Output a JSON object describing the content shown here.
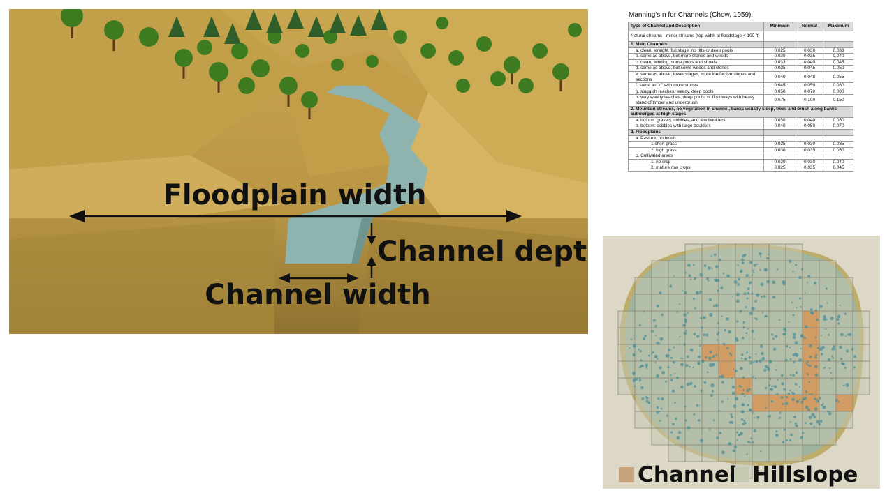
{
  "scene": {
    "floodplain_label": "Floodplain width",
    "depth_label": "Channel depth",
    "width_label": "Channel width"
  },
  "table": {
    "title": "Manning's n for Channels (Chow, 1959).",
    "headers": [
      "Type of Channel and Description",
      "Minimum",
      "Normal",
      "Maximum"
    ],
    "rows": [
      {
        "kind": "note",
        "desc": "Natural streams - minor streams (top width at floodstage < 100 ft)",
        "min": "",
        "norm": "",
        "max": ""
      },
      {
        "kind": "sect",
        "desc": "1. Main Channels",
        "min": "",
        "norm": "",
        "max": ""
      },
      {
        "kind": "sub",
        "desc": "a. clean, straight, full stage, no rifts or deep pools",
        "min": "0.025",
        "norm": "0.030",
        "max": "0.033"
      },
      {
        "kind": "sub",
        "desc": "b. same as above, but more stones and weeds",
        "min": "0.030",
        "norm": "0.035",
        "max": "0.040"
      },
      {
        "kind": "sub",
        "desc": "c. clean, winding, some pools and shoals",
        "min": "0.033",
        "norm": "0.040",
        "max": "0.045"
      },
      {
        "kind": "sub",
        "desc": "d. same as above, but some weeds and stones",
        "min": "0.035",
        "norm": "0.045",
        "max": "0.050"
      },
      {
        "kind": "sub",
        "desc": "e. same as above, lower stages, more ineffective slopes and sections",
        "min": "0.040",
        "norm": "0.048",
        "max": "0.055"
      },
      {
        "kind": "sub",
        "desc": "f. same as \"d\" with more stones",
        "min": "0.045",
        "norm": "0.050",
        "max": "0.060"
      },
      {
        "kind": "sub",
        "desc": "g. sluggish reaches, weedy, deep pools",
        "min": "0.050",
        "norm": "0.070",
        "max": "0.080"
      },
      {
        "kind": "sub",
        "desc": "h. very weedy reaches, deep pools, or floodways with heavy stand of timber and underbrush",
        "min": "0.075",
        "norm": "0.100",
        "max": "0.150"
      },
      {
        "kind": "sect",
        "desc": "2. Mountain streams, no vegetation in channel, banks usually steep, trees and brush along banks submerged at high stages",
        "min": "",
        "norm": "",
        "max": ""
      },
      {
        "kind": "sub",
        "desc": "a. bottom: gravels, cobbles, and few boulders",
        "min": "0.030",
        "norm": "0.040",
        "max": "0.050"
      },
      {
        "kind": "sub",
        "desc": "b. bottom: cobbles with large boulders",
        "min": "0.040",
        "norm": "0.050",
        "max": "0.070"
      },
      {
        "kind": "sect",
        "desc": "3. Floodplains",
        "min": "",
        "norm": "",
        "max": ""
      },
      {
        "kind": "sub",
        "desc": "a. Pasture, no brush",
        "min": "",
        "norm": "",
        "max": ""
      },
      {
        "kind": "subsub",
        "desc": "1.short grass",
        "min": "0.025",
        "norm": "0.030",
        "max": "0.035"
      },
      {
        "kind": "subsub",
        "desc": "2. high grass",
        "min": "0.030",
        "norm": "0.035",
        "max": "0.050"
      },
      {
        "kind": "sub",
        "desc": "b. Cultivated areas",
        "min": "",
        "norm": "",
        "max": ""
      },
      {
        "kind": "subsub",
        "desc": "1. no crop",
        "min": "0.020",
        "norm": "0.030",
        "max": "0.040"
      },
      {
        "kind": "subsub",
        "desc": "2. mature row crops",
        "min": "0.025",
        "norm": "0.035",
        "max": "0.045"
      }
    ]
  },
  "map": {
    "legend": [
      {
        "label": "Channel",
        "color": "#c8a27a"
      },
      {
        "label": "Hillslope",
        "color": "#c4c9b2"
      }
    ]
  },
  "colors": {
    "terrain": "#c9a54f",
    "water": "#8fb3ae",
    "tree": "#3d7a20",
    "map_bg": "#ddd8c5",
    "hillslope_fill": "#9fb4a0",
    "channel_cell": "#d69a5e"
  }
}
